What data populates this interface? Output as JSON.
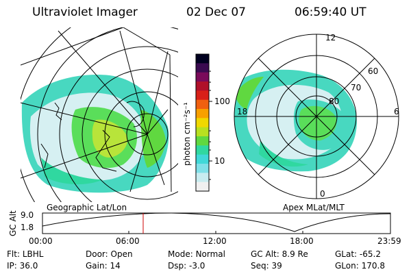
{
  "header": {
    "instrument": "Ultraviolet Imager",
    "date": "02 Dec 07",
    "time": "06:59:40 UT"
  },
  "maps": {
    "geographic_label": "Geographic Lat/Lon",
    "apex_label": "Apex MLat/MLT",
    "apex_mlt_labels": {
      "top": "12",
      "left": "18",
      "right": "6",
      "bottom": "0"
    },
    "apex_lat_labels": [
      "60",
      "70",
      "80"
    ]
  },
  "colorbar": {
    "unit_label": "photon cm⁻²s⁻¹",
    "ticks": [
      "100",
      "10"
    ],
    "colors": [
      "#000020",
      "#3a0a50",
      "#7a0a5a",
      "#b0102a",
      "#d82018",
      "#f06010",
      "#f8a000",
      "#f0d800",
      "#b8e020",
      "#60d840",
      "#30d8a0",
      "#40d8d8",
      "#80e0e8",
      "#c8ecf0",
      "#f0f0f0"
    ]
  },
  "altitude_plot": {
    "ylabel": "GC Alt",
    "yticks": [
      "9.0",
      "1.8"
    ],
    "xticks": [
      "00:00",
      "06:00",
      "12:00",
      "18:00",
      "23:59"
    ],
    "marker_time": "06:59:40",
    "marker_color": "#cc0000"
  },
  "status": {
    "row1": [
      {
        "label": "Flt:",
        "value": "LBHL"
      },
      {
        "label": "Door:",
        "value": "Open"
      },
      {
        "label": "Mode:",
        "value": "Normal"
      },
      {
        "label": "GC Alt:",
        "value": "8.9 Re"
      },
      {
        "label": "GLat:",
        "value": "-65.2"
      }
    ],
    "row2": [
      {
        "label": "IP:",
        "value": "36.0"
      },
      {
        "label": "Gain:",
        "value": "14"
      },
      {
        "label": "Dsp:",
        "value": "-3.0"
      },
      {
        "label": "Seq:",
        "value": "39"
      },
      {
        "label": "GLon:",
        "value": "170.8"
      }
    ]
  }
}
